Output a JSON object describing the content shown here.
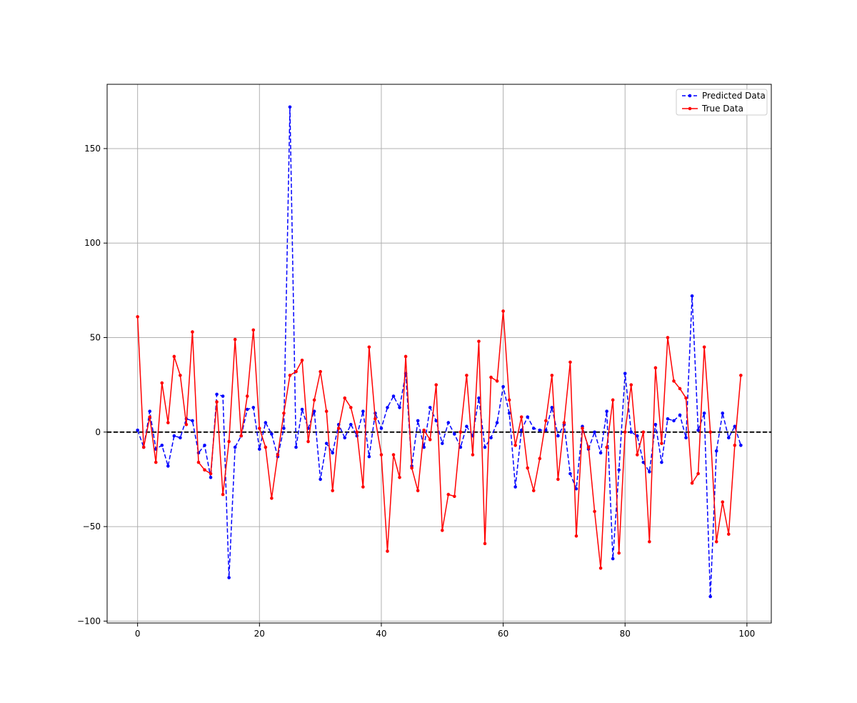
{
  "chart_data": {
    "type": "line",
    "title": "",
    "xlabel": "",
    "ylabel": "",
    "xlim": [
      -5,
      104
    ],
    "ylim": [
      -101,
      184
    ],
    "x_ticks": [
      0,
      20,
      40,
      60,
      80,
      100
    ],
    "y_ticks": [
      -100,
      -50,
      0,
      50,
      100,
      150
    ],
    "grid": true,
    "zero_line": {
      "y": 0,
      "style": "dashed",
      "color": "#000000"
    },
    "legend": {
      "position": "top-right"
    },
    "series": [
      {
        "name": "Predicted Data",
        "color": "#0000ff",
        "style": "dashed",
        "marker": "dot",
        "values": [
          1,
          -8,
          11,
          -9,
          -7,
          -18,
          -2,
          -3,
          7,
          6,
          -11,
          -7,
          -24,
          20,
          19,
          -77,
          -8,
          -2,
          12,
          13,
          -9,
          5,
          -1,
          -13,
          2,
          172,
          -8,
          12,
          2,
          11,
          -25,
          -6,
          -11,
          4,
          -3,
          4,
          -2,
          11,
          -13,
          10,
          2,
          13,
          19,
          13,
          31,
          -18,
          6,
          -8,
          13,
          6,
          -6,
          5,
          -1,
          -8,
          3,
          -2,
          18,
          -8,
          -3,
          5,
          24,
          10,
          -29,
          1,
          8,
          2,
          1,
          1,
          13,
          -2,
          4,
          -22,
          -30,
          3,
          -9,
          0,
          -11,
          11,
          -67,
          -20,
          31,
          0,
          -2,
          -16,
          -21,
          4,
          -16,
          7,
          6,
          9,
          -3,
          72,
          1,
          10,
          -87,
          -10,
          10,
          -3,
          3,
          -7
        ]
      },
      {
        "name": "True Data",
        "color": "#ff0000",
        "style": "solid",
        "marker": "dot",
        "values": [
          61,
          -8,
          8,
          -16,
          26,
          5,
          40,
          30,
          4,
          53,
          -16,
          -20,
          -22,
          16,
          -33,
          -5,
          49,
          -2,
          19,
          54,
          2,
          -8,
          -35,
          -12,
          10,
          30,
          32,
          38,
          -5,
          17,
          32,
          11,
          -31,
          2,
          18,
          13,
          0,
          -29,
          45,
          7,
          -12,
          -63,
          -12,
          -24,
          40,
          -19,
          -31,
          1,
          -4,
          25,
          -52,
          -33,
          -34,
          0,
          30,
          -12,
          48,
          -59,
          29,
          27,
          64,
          17,
          -7,
          8,
          -19,
          -31,
          -14,
          6,
          30,
          -25,
          5,
          37,
          -55,
          2,
          -8,
          -42,
          -72,
          -8,
          17,
          -64,
          0,
          25,
          -12,
          0,
          -58,
          34,
          -6,
          50,
          27,
          23,
          18,
          -27,
          -22,
          45,
          0,
          -58,
          -37,
          -54,
          -7,
          30
        ]
      }
    ]
  }
}
